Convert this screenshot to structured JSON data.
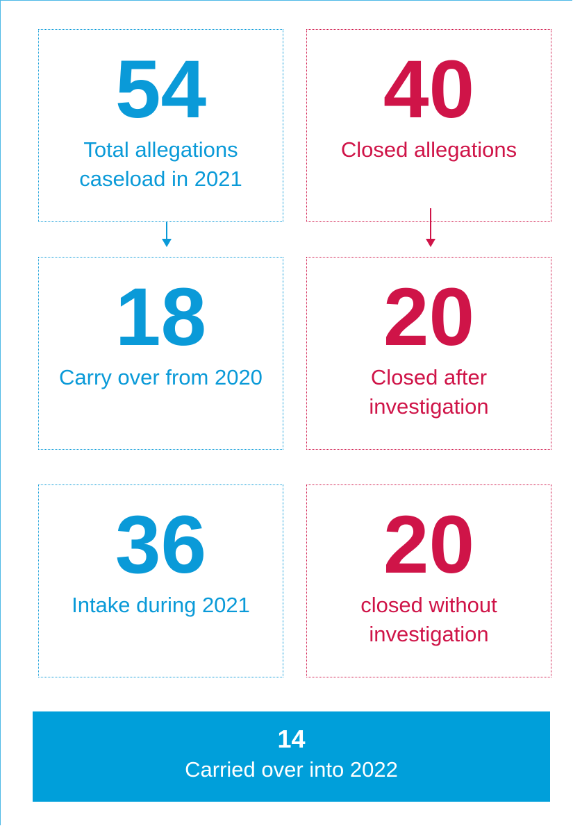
{
  "left": [
    {
      "number": "54",
      "label": "Total allegations caseload in 2021"
    },
    {
      "number": "18",
      "label": "Carry over from 2020"
    },
    {
      "number": "36",
      "label": "Intake during 2021"
    }
  ],
  "right": [
    {
      "number": "40",
      "label": "Closed allegations"
    },
    {
      "number": "20",
      "label": "Closed after investigation"
    },
    {
      "number": "20",
      "label": "closed without investigation"
    }
  ],
  "footer": {
    "number": "14",
    "label": "Carried over into 2022"
  }
}
